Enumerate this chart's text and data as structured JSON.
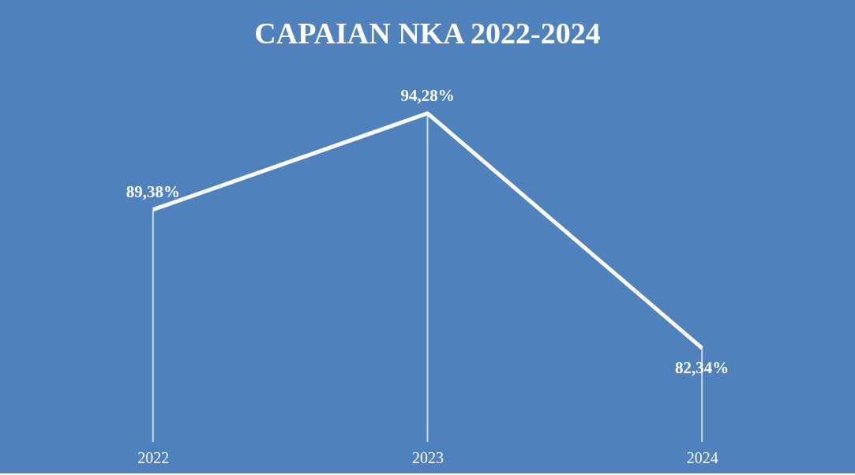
{
  "chart_data": {
    "type": "line",
    "title": "CAPAIAN NKA 2022-2024",
    "categories": [
      "2022",
      "2023",
      "2024"
    ],
    "series": [
      {
        "color": "#ffffff",
        "values": [
          89.38,
          94.28,
          82.34
        ],
        "value_labels": [
          "89,38%",
          "94,28%",
          "82,34%"
        ]
      }
    ],
    "line_style": "solid"
  }
}
